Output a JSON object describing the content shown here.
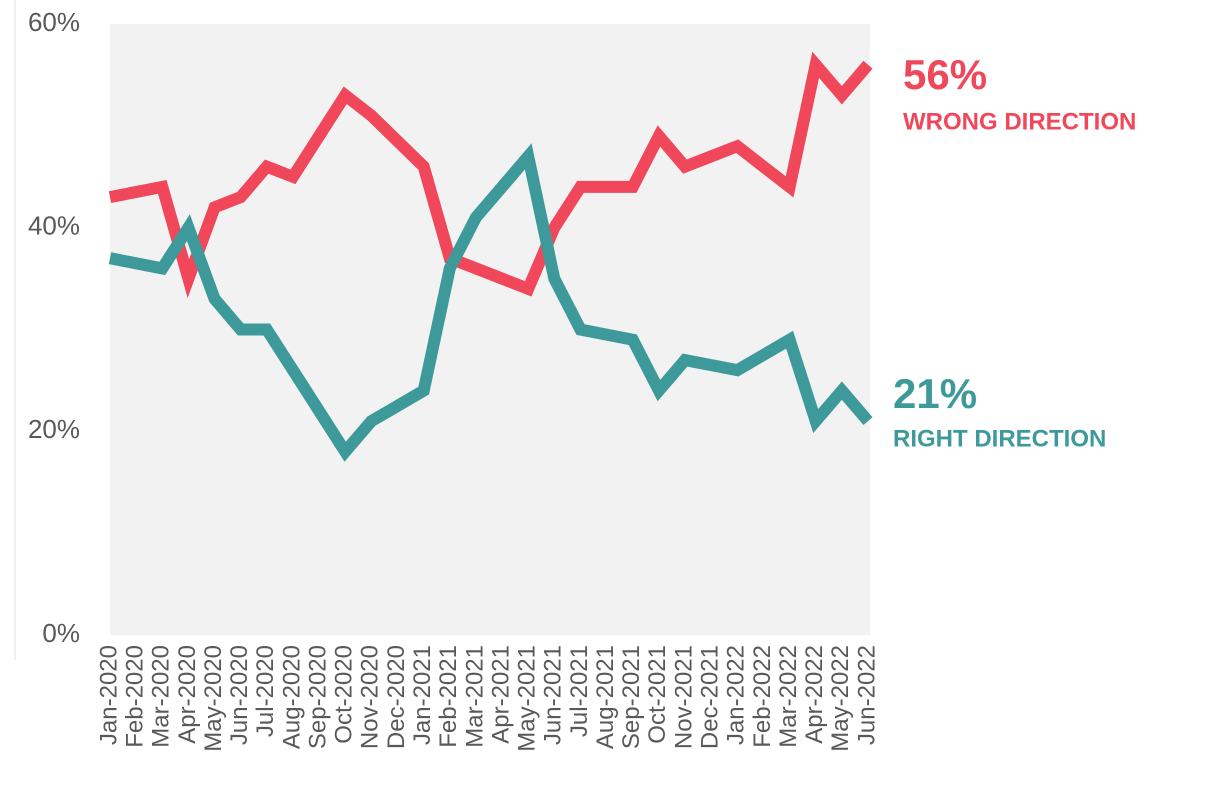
{
  "chart_data": {
    "type": "line",
    "categories": [
      "Jan-2020",
      "Feb-2020",
      "Mar-2020",
      "Apr-2020",
      "May-2020",
      "Jun-2020",
      "Jul-2020",
      "Aug-2020",
      "Sep-2020",
      "Oct-2020",
      "Nov-2020",
      "Dec-2020",
      "Jan-2021",
      "Feb-2021",
      "Mar-2021",
      "Apr-2021",
      "May-2021",
      "Jun-2021",
      "Jul-2021",
      "Aug-2021",
      "Sep-2021",
      "Oct-2021",
      "Nov-2021",
      "Dec-2021",
      "Jan-2022",
      "Feb-2022",
      "Mar-2022",
      "Apr-2022",
      "May-2022",
      "Jun-2022"
    ],
    "series": [
      {
        "name": "WRONG DIRECTION",
        "end_label": "56%",
        "color": "#f0475a",
        "values": [
          43,
          43.5,
          44,
          35,
          42,
          43,
          46,
          45,
          49,
          53,
          51,
          48.5,
          46,
          37,
          36,
          35,
          34,
          40,
          44,
          44,
          44,
          49,
          46,
          47,
          48,
          46,
          44,
          56,
          53,
          56
        ]
      },
      {
        "name": "RIGHT DIRECTION",
        "end_label": "21%",
        "color": "#3e9a9a",
        "values": [
          37,
          36.5,
          36,
          40,
          33,
          30,
          30,
          26,
          22,
          18,
          21,
          22.5,
          24,
          36,
          41,
          44,
          47,
          35,
          30,
          29.5,
          29,
          24,
          27,
          26.5,
          26,
          27.5,
          29,
          21,
          24,
          21
        ]
      }
    ],
    "ylim": [
      0,
      60
    ],
    "yticks": [
      {
        "value": 0,
        "label": "0%"
      },
      {
        "value": 20,
        "label": "20%"
      },
      {
        "value": 40,
        "label": "40%"
      },
      {
        "value": 60,
        "label": "60%"
      }
    ],
    "plot_background": "#f2f2f2"
  }
}
